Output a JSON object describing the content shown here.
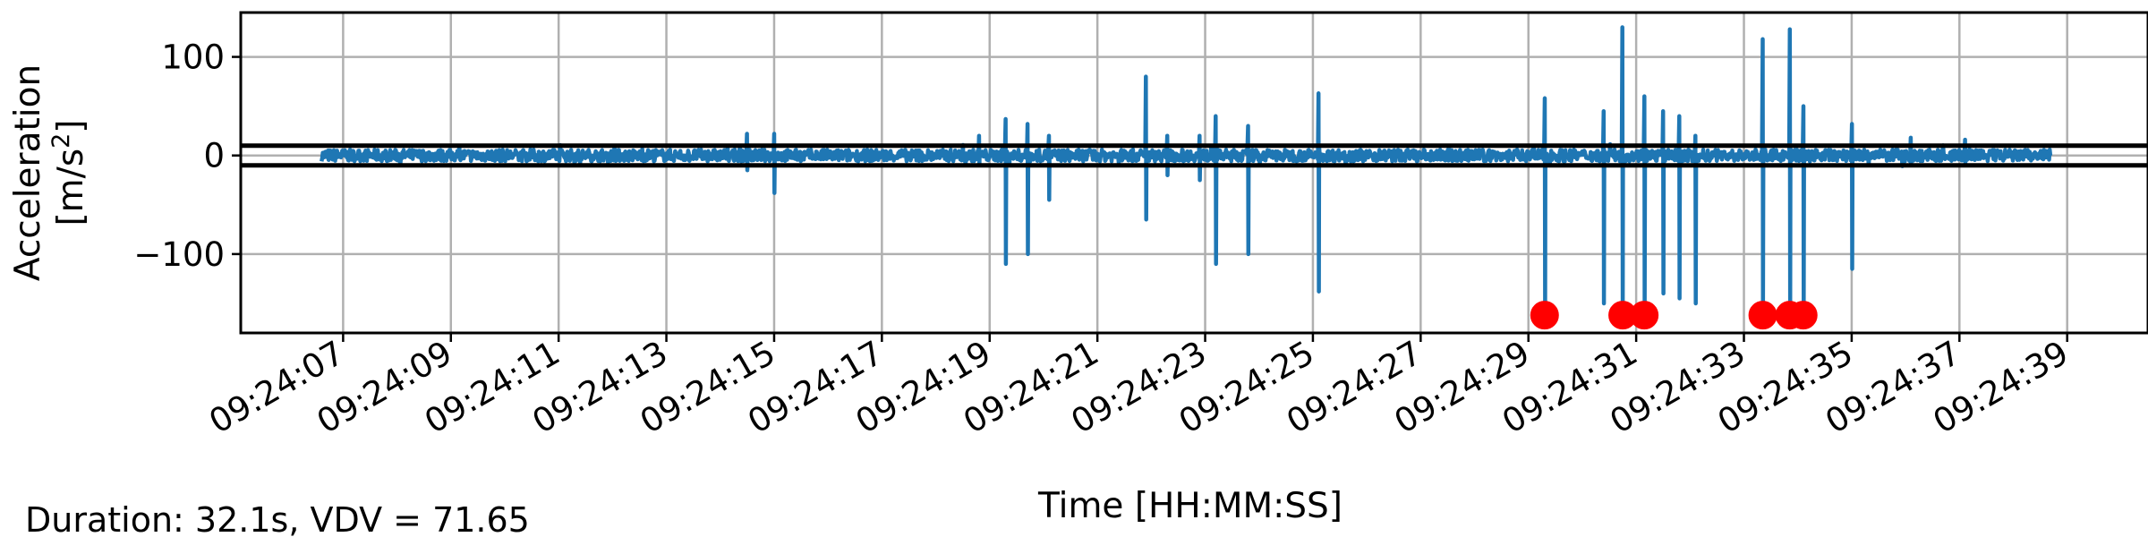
{
  "chart_data": {
    "type": "line",
    "title": "",
    "xlabel": "Time [HH:MM:SS]",
    "ylabel": "Acceleration [m/s²]",
    "ylabel_lines": [
      "Acceleration",
      "[m/s²]"
    ],
    "xlim_seconds": [
      5.1,
      40.5
    ],
    "ylim": [
      -180,
      145
    ],
    "grid": true,
    "x_ticks": [
      "09:24:07",
      "09:24:09",
      "09:24:11",
      "09:24:13",
      "09:24:15",
      "09:24:17",
      "09:24:19",
      "09:24:21",
      "09:24:23",
      "09:24:25",
      "09:24:27",
      "09:24:29",
      "09:24:31",
      "09:24:33",
      "09:24:35",
      "09:24:37",
      "09:24:39"
    ],
    "y_ticks": [
      100,
      0,
      -100
    ],
    "y_tick_labels": [
      "100",
      "0",
      "−100"
    ],
    "thresholds": [
      10,
      -10
    ],
    "threshold_color": "#000000",
    "series_color": "#1f77b4",
    "marker_color": "#ff0000",
    "marker_y": -162,
    "markers_x_seconds": [
      29.3,
      30.75,
      31.15,
      33.35,
      33.85,
      34.1
    ],
    "signal": {
      "x_start_seconds": 6.6,
      "x_end_seconds": 38.7,
      "noise_amplitude": 6,
      "spikes": [
        {
          "x": 14.5,
          "max": 22,
          "min": -15
        },
        {
          "x": 15.0,
          "max": 22,
          "min": -38
        },
        {
          "x": 18.8,
          "max": 20,
          "min": -10
        },
        {
          "x": 19.3,
          "max": 37,
          "min": -110
        },
        {
          "x": 19.7,
          "max": 32,
          "min": -100
        },
        {
          "x": 20.1,
          "max": 20,
          "min": -45
        },
        {
          "x": 21.9,
          "max": 80,
          "min": -65
        },
        {
          "x": 22.3,
          "max": 20,
          "min": -20
        },
        {
          "x": 22.9,
          "max": 20,
          "min": -25
        },
        {
          "x": 23.2,
          "max": 40,
          "min": -110
        },
        {
          "x": 23.8,
          "max": 30,
          "min": -100
        },
        {
          "x": 25.1,
          "max": 63,
          "min": -138
        },
        {
          "x": 29.3,
          "max": 58,
          "min": -162
        },
        {
          "x": 30.4,
          "max": 45,
          "min": -150
        },
        {
          "x": 30.75,
          "max": 130,
          "min": -162
        },
        {
          "x": 31.15,
          "max": 60,
          "min": -162
        },
        {
          "x": 31.5,
          "max": 45,
          "min": -140
        },
        {
          "x": 31.8,
          "max": 40,
          "min": -145
        },
        {
          "x": 32.1,
          "max": 20,
          "min": -150
        },
        {
          "x": 33.35,
          "max": 118,
          "min": -162
        },
        {
          "x": 33.85,
          "max": 128,
          "min": -162
        },
        {
          "x": 34.1,
          "max": 50,
          "min": -162
        },
        {
          "x": 35.0,
          "max": 32,
          "min": -115
        },
        {
          "x": 36.1,
          "max": 18,
          "min": -10
        },
        {
          "x": 37.1,
          "max": 16,
          "min": -8
        }
      ]
    }
  },
  "footer": {
    "summary": "Duration: 32.1s, VDV = 71.65"
  }
}
